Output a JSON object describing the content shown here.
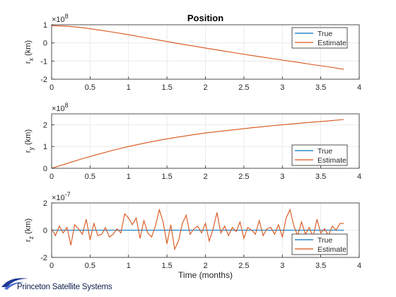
{
  "chart_data": [
    {
      "type": "line",
      "title": "Position",
      "ylabel": "r",
      "ylabel_sub": "x",
      "ylabel_unit": " (km)",
      "exponent": "×10",
      "exponent_power": "8",
      "xlim": [
        0,
        4
      ],
      "ylim": [
        -2,
        1
      ],
      "xticks": [
        "0",
        "0.5",
        "1",
        "1.5",
        "2",
        "2.5",
        "3",
        "3.5",
        "4"
      ],
      "yticks": [
        "1",
        "0",
        "-1",
        "-2"
      ],
      "ytick_values": [
        1,
        0,
        -1,
        -2
      ],
      "legend_position": "top-right",
      "series": [
        {
          "name": "True",
          "color": "#0072bd",
          "x": [],
          "y": []
        },
        {
          "name": "Estimate",
          "color": "#d95319",
          "x": [
            0,
            0.2,
            0.4,
            0.6,
            0.8,
            1.0,
            1.2,
            1.4,
            1.6,
            1.8,
            2.0,
            2.2,
            2.4,
            2.6,
            2.8,
            3.0,
            3.2,
            3.4,
            3.6,
            3.8
          ],
          "y": [
            0.95,
            0.92,
            0.84,
            0.72,
            0.59,
            0.45,
            0.3,
            0.15,
            0.0,
            -0.14,
            -0.28,
            -0.42,
            -0.56,
            -0.69,
            -0.82,
            -0.95,
            -1.07,
            -1.2,
            -1.32,
            -1.45
          ]
        }
      ]
    },
    {
      "type": "line",
      "title": "",
      "ylabel": "r",
      "ylabel_sub": "y",
      "ylabel_unit": " (km)",
      "exponent": "×10",
      "exponent_power": "8",
      "xlim": [
        0,
        4
      ],
      "ylim": [
        0,
        2.5
      ],
      "xticks": [
        "0",
        "0.5",
        "1",
        "1.5",
        "2",
        "2.5",
        "3",
        "3.5",
        "4"
      ],
      "yticks": [
        "2",
        "1",
        "0"
      ],
      "ytick_values": [
        2,
        1,
        0
      ],
      "legend_position": "bottom-right",
      "series": [
        {
          "name": "True",
          "color": "#0072bd",
          "x": [],
          "y": []
        },
        {
          "name": "Estimate",
          "color": "#d95319",
          "x": [
            0,
            0.2,
            0.4,
            0.6,
            0.8,
            1.0,
            1.2,
            1.4,
            1.6,
            1.8,
            2.0,
            2.2,
            2.4,
            2.6,
            2.8,
            3.0,
            3.2,
            3.4,
            3.6,
            3.8
          ],
          "y": [
            0.0,
            0.22,
            0.44,
            0.64,
            0.83,
            1.0,
            1.15,
            1.29,
            1.41,
            1.52,
            1.62,
            1.7,
            1.78,
            1.86,
            1.93,
            2.0,
            2.06,
            2.12,
            2.18,
            2.24
          ]
        }
      ]
    },
    {
      "type": "line",
      "title": "",
      "ylabel": "r",
      "ylabel_sub": "z",
      "ylabel_unit": " (km)",
      "exponent": "×10",
      "exponent_power": "-7",
      "xlabel": "Time (months)",
      "xlim": [
        0,
        4
      ],
      "ylim": [
        -2,
        2
      ],
      "xticks": [
        "0",
        "0.5",
        "1",
        "1.5",
        "2",
        "2.5",
        "3",
        "3.5",
        "4"
      ],
      "yticks": [
        "2",
        "0",
        "-2"
      ],
      "ytick_values": [
        2,
        0,
        -2
      ],
      "legend_position": "bottom-right",
      "series": [
        {
          "name": "True",
          "color": "#0072bd",
          "x": [
            0,
            3.8
          ],
          "y": [
            0,
            0
          ]
        },
        {
          "name": "Estimate",
          "color": "#d95319",
          "x": [
            0,
            0.05,
            0.1,
            0.15,
            0.2,
            0.25,
            0.3,
            0.35,
            0.4,
            0.45,
            0.5,
            0.55,
            0.6,
            0.65,
            0.7,
            0.75,
            0.8,
            0.85,
            0.9,
            0.95,
            1.0,
            1.05,
            1.1,
            1.15,
            1.2,
            1.25,
            1.3,
            1.35,
            1.4,
            1.45,
            1.5,
            1.55,
            1.6,
            1.65,
            1.7,
            1.75,
            1.8,
            1.85,
            1.9,
            1.95,
            2.0,
            2.05,
            2.1,
            2.15,
            2.2,
            2.25,
            2.3,
            2.35,
            2.4,
            2.45,
            2.5,
            2.55,
            2.6,
            2.65,
            2.7,
            2.75,
            2.8,
            2.85,
            2.9,
            2.95,
            3.0,
            3.05,
            3.1,
            3.15,
            3.2,
            3.25,
            3.3,
            3.35,
            3.4,
            3.45,
            3.5,
            3.55,
            3.6,
            3.65,
            3.7,
            3.75,
            3.8
          ],
          "y": [
            0.1,
            -0.4,
            0.3,
            -0.2,
            0.2,
            -1.1,
            0.4,
            0.1,
            -0.3,
            0.8,
            -0.7,
            0.5,
            -0.4,
            -0.3,
            0.2,
            -0.5,
            -0.3,
            0.1,
            -0.2,
            1.2,
            0.9,
            0.4,
            0.9,
            -0.6,
            0.7,
            -0.2,
            -0.5,
            0.3,
            1.5,
            0.6,
            -1.0,
            0.4,
            -1.4,
            -0.8,
            0.5,
            1.1,
            -0.3,
            0.1,
            0.3,
            -0.2,
            0.5,
            -0.8,
            0.1,
            1.3,
            -0.2,
            0.3,
            -0.4,
            0.2,
            -0.1,
            0.6,
            -0.6,
            0.2,
            0.0,
            -0.3,
            0.7,
            -0.4,
            0.1,
            0.2,
            -0.3,
            0.4,
            -0.5,
            0.9,
            1.5,
            0.3,
            -0.4,
            0.6,
            -0.3,
            0.2,
            -0.5,
            0.8,
            -0.2,
            0.1,
            -0.4,
            0.3,
            0.0,
            0.5,
            0.5
          ]
        }
      ]
    }
  ],
  "logo": {
    "text": "Princeton Satellite Systems",
    "color": "#0e1f4d"
  }
}
